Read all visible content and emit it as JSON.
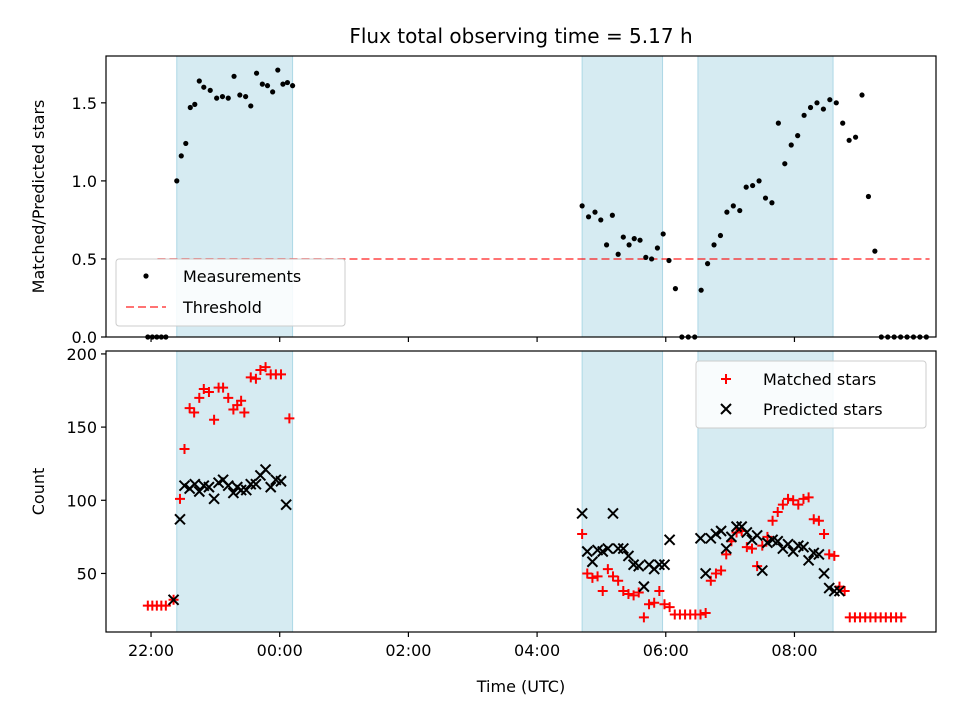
{
  "title": "Flux total observing time = 5.17 h",
  "colors": {
    "band": "#add8e6",
    "threshold": "#ff0000",
    "matched": "#ff0000",
    "predicted": "#000000",
    "measurement": "#000000"
  },
  "chart_data": [
    {
      "type": "scatter",
      "ylabel": "Matched/Predicted stars",
      "xlim": [
        -2.7,
        10.2
      ],
      "ylim": [
        0,
        1.8
      ],
      "yticks": [
        0.0,
        0.5,
        1.0,
        1.5
      ],
      "ytick_labels": [
        "0.0",
        "0.5",
        "1.0",
        "1.5"
      ],
      "grid": false,
      "legend_position": "lower-left",
      "shaded_intervals": [
        [
          -1.6,
          0.2
        ],
        [
          4.7,
          5.95
        ],
        [
          6.5,
          8.6
        ]
      ],
      "threshold": {
        "name": "Threshold",
        "value": 0.5,
        "x_range": [
          -1.9,
          10.1
        ]
      },
      "series": [
        {
          "name": "Measurements",
          "points": [
            [
              -2.05,
              0.0
            ],
            [
              -1.98,
              0.0
            ],
            [
              -1.91,
              0.0
            ],
            [
              -1.84,
              0.0
            ],
            [
              -1.77,
              0.0
            ],
            [
              -1.6,
              1.0
            ],
            [
              -1.53,
              1.16
            ],
            [
              -1.46,
              1.24
            ],
            [
              -1.39,
              1.47
            ],
            [
              -1.32,
              1.49
            ],
            [
              -1.25,
              1.64
            ],
            [
              -1.18,
              1.6
            ],
            [
              -1.08,
              1.58
            ],
            [
              -0.98,
              1.53
            ],
            [
              -0.89,
              1.54
            ],
            [
              -0.8,
              1.53
            ],
            [
              -0.71,
              1.67
            ],
            [
              -0.62,
              1.55
            ],
            [
              -0.53,
              1.54
            ],
            [
              -0.45,
              1.48
            ],
            [
              -0.36,
              1.69
            ],
            [
              -0.27,
              1.62
            ],
            [
              -0.19,
              1.61
            ],
            [
              -0.11,
              1.57
            ],
            [
              -0.03,
              1.71
            ],
            [
              0.05,
              1.62
            ],
            [
              0.12,
              1.63
            ],
            [
              0.2,
              1.61
            ],
            [
              4.7,
              0.84
            ],
            [
              4.8,
              0.77
            ],
            [
              4.9,
              0.8
            ],
            [
              4.99,
              0.75
            ],
            [
              5.08,
              0.59
            ],
            [
              5.17,
              0.78
            ],
            [
              5.26,
              0.53
            ],
            [
              5.34,
              0.64
            ],
            [
              5.43,
              0.59
            ],
            [
              5.51,
              0.63
            ],
            [
              5.6,
              0.62
            ],
            [
              5.69,
              0.51
            ],
            [
              5.78,
              0.5
            ],
            [
              5.87,
              0.57
            ],
            [
              5.96,
              0.66
            ],
            [
              6.05,
              0.49
            ],
            [
              6.15,
              0.31
            ],
            [
              6.25,
              0.0
            ],
            [
              6.35,
              0.0
            ],
            [
              6.45,
              0.0
            ],
            [
              6.55,
              0.3
            ],
            [
              6.65,
              0.47
            ],
            [
              6.75,
              0.59
            ],
            [
              6.85,
              0.65
            ],
            [
              6.95,
              0.8
            ],
            [
              7.05,
              0.84
            ],
            [
              7.15,
              0.81
            ],
            [
              7.25,
              0.96
            ],
            [
              7.35,
              0.97
            ],
            [
              7.45,
              1.0
            ],
            [
              7.55,
              0.89
            ],
            [
              7.65,
              0.86
            ],
            [
              7.75,
              1.37
            ],
            [
              7.85,
              1.11
            ],
            [
              7.95,
              1.23
            ],
            [
              8.05,
              1.29
            ],
            [
              8.15,
              1.42
            ],
            [
              8.25,
              1.47
            ],
            [
              8.35,
              1.5
            ],
            [
              8.45,
              1.46
            ],
            [
              8.55,
              1.52
            ],
            [
              8.65,
              1.5
            ],
            [
              8.75,
              1.37
            ],
            [
              8.85,
              1.26
            ],
            [
              8.95,
              1.28
            ],
            [
              9.05,
              1.55
            ],
            [
              9.15,
              0.9
            ],
            [
              9.25,
              0.55
            ],
            [
              9.35,
              0.0
            ],
            [
              9.45,
              0.0
            ],
            [
              9.55,
              0.0
            ],
            [
              9.65,
              0.0
            ],
            [
              9.75,
              0.0
            ],
            [
              9.85,
              0.0
            ],
            [
              9.95,
              0.0
            ],
            [
              10.05,
              0.0
            ]
          ]
        }
      ]
    },
    {
      "type": "scatter",
      "ylabel": "Count",
      "xlabel": "Time (UTC)",
      "xlim": [
        -2.7,
        10.2
      ],
      "ylim": [
        10,
        202
      ],
      "yticks": [
        50,
        100,
        150,
        200
      ],
      "ytick_labels": [
        "50",
        "100",
        "150",
        "200"
      ],
      "xticks": [
        -2,
        0,
        2,
        4,
        6,
        8
      ],
      "xtick_labels": [
        "22:00",
        "00:00",
        "02:00",
        "04:00",
        "06:00",
        "08:00"
      ],
      "grid": false,
      "legend_position": "upper-right",
      "shaded_intervals": [
        [
          -1.6,
          0.2
        ],
        [
          4.7,
          5.95
        ],
        [
          6.5,
          8.6
        ]
      ],
      "series": [
        {
          "name": "Matched stars",
          "marker": "plus",
          "points": [
            [
              -2.05,
              28
            ],
            [
              -1.98,
              28
            ],
            [
              -1.91,
              28
            ],
            [
              -1.84,
              28
            ],
            [
              -1.77,
              28
            ],
            [
              -1.65,
              32
            ],
            [
              -1.55,
              101
            ],
            [
              -1.48,
              135
            ],
            [
              -1.4,
              163
            ],
            [
              -1.33,
              160
            ],
            [
              -1.25,
              170
            ],
            [
              -1.18,
              176
            ],
            [
              -1.1,
              174
            ],
            [
              -1.02,
              155
            ],
            [
              -0.95,
              177
            ],
            [
              -0.88,
              177
            ],
            [
              -0.8,
              170
            ],
            [
              -0.72,
              162
            ],
            [
              -0.66,
              165
            ],
            [
              -0.6,
              168
            ],
            [
              -0.55,
              160
            ],
            [
              -0.45,
              184
            ],
            [
              -0.37,
              183
            ],
            [
              -0.3,
              189
            ],
            [
              -0.22,
              191
            ],
            [
              -0.14,
              186
            ],
            [
              -0.06,
              186
            ],
            [
              0.02,
              186
            ],
            [
              0.15,
              156
            ],
            [
              4.7,
              77
            ],
            [
              4.78,
              50
            ],
            [
              4.86,
              47
            ],
            [
              4.94,
              48
            ],
            [
              5.02,
              38
            ],
            [
              5.1,
              53
            ],
            [
              5.18,
              48
            ],
            [
              5.26,
              45
            ],
            [
              5.34,
              38
            ],
            [
              5.42,
              36
            ],
            [
              5.5,
              35
            ],
            [
              5.58,
              37
            ],
            [
              5.66,
              20
            ],
            [
              5.74,
              29
            ],
            [
              5.82,
              30
            ],
            [
              5.9,
              38
            ],
            [
              5.98,
              29
            ],
            [
              6.06,
              27
            ],
            [
              6.14,
              22
            ],
            [
              6.22,
              22
            ],
            [
              6.3,
              22
            ],
            [
              6.38,
              22
            ],
            [
              6.46,
              22
            ],
            [
              6.54,
              22
            ],
            [
              6.62,
              23
            ],
            [
              6.7,
              45
            ],
            [
              6.78,
              50
            ],
            [
              6.86,
              52
            ],
            [
              6.94,
              63
            ],
            [
              7.02,
              72
            ],
            [
              7.1,
              78
            ],
            [
              7.18,
              79
            ],
            [
              7.26,
              68
            ],
            [
              7.34,
              67
            ],
            [
              7.42,
              55
            ],
            [
              7.5,
              69
            ],
            [
              7.58,
              75
            ],
            [
              7.66,
              86
            ],
            [
              7.74,
              92
            ],
            [
              7.82,
              97
            ],
            [
              7.9,
              101
            ],
            [
              7.98,
              100
            ],
            [
              8.06,
              97
            ],
            [
              8.14,
              101
            ],
            [
              8.22,
              102
            ],
            [
              8.3,
              87
            ],
            [
              8.38,
              86
            ],
            [
              8.46,
              77
            ],
            [
              8.54,
              63
            ],
            [
              8.62,
              62
            ],
            [
              8.7,
              41
            ],
            [
              8.78,
              38
            ],
            [
              8.86,
              20
            ],
            [
              8.94,
              20
            ],
            [
              9.02,
              20
            ],
            [
              9.1,
              20
            ],
            [
              9.18,
              20
            ],
            [
              9.26,
              20
            ],
            [
              9.34,
              20
            ],
            [
              9.42,
              20
            ],
            [
              9.5,
              20
            ],
            [
              9.58,
              20
            ],
            [
              9.66,
              20
            ]
          ]
        },
        {
          "name": "Predicted stars",
          "marker": "x",
          "points": [
            [
              -1.65,
              32
            ],
            [
              -1.55,
              87
            ],
            [
              -1.48,
              110
            ],
            [
              -1.4,
              108
            ],
            [
              -1.32,
              111
            ],
            [
              -1.25,
              106
            ],
            [
              -1.18,
              110
            ],
            [
              -1.1,
              109
            ],
            [
              -1.02,
              101
            ],
            [
              -0.95,
              112
            ],
            [
              -0.88,
              114
            ],
            [
              -0.8,
              110
            ],
            [
              -0.72,
              105
            ],
            [
              -0.66,
              109
            ],
            [
              -0.6,
              107
            ],
            [
              -0.52,
              107
            ],
            [
              -0.45,
              111
            ],
            [
              -0.37,
              111
            ],
            [
              -0.3,
              117
            ],
            [
              -0.22,
              121
            ],
            [
              -0.14,
              109
            ],
            [
              -0.06,
              114
            ],
            [
              0.02,
              113
            ],
            [
              0.1,
              97
            ],
            [
              4.7,
              91
            ],
            [
              4.78,
              65
            ],
            [
              4.86,
              58
            ],
            [
              4.94,
              66
            ],
            [
              5.02,
              65
            ],
            [
              5.1,
              67
            ],
            [
              5.18,
              91
            ],
            [
              5.26,
              67
            ],
            [
              5.34,
              67
            ],
            [
              5.42,
              62
            ],
            [
              5.5,
              56
            ],
            [
              5.58,
              55
            ],
            [
              5.66,
              41
            ],
            [
              5.74,
              56
            ],
            [
              5.82,
              53
            ],
            [
              5.9,
              56
            ],
            [
              5.98,
              56
            ],
            [
              6.06,
              73
            ],
            [
              6.54,
              74
            ],
            [
              6.62,
              50
            ],
            [
              6.7,
              74
            ],
            [
              6.78,
              77
            ],
            [
              6.86,
              79
            ],
            [
              6.94,
              67
            ],
            [
              7.02,
              75
            ],
            [
              7.1,
              82
            ],
            [
              7.18,
              82
            ],
            [
              7.26,
              78
            ],
            [
              7.34,
              73
            ],
            [
              7.42,
              76
            ],
            [
              7.5,
              52
            ],
            [
              7.58,
              71
            ],
            [
              7.66,
              73
            ],
            [
              7.74,
              72
            ],
            [
              7.82,
              67
            ],
            [
              7.9,
              70
            ],
            [
              7.98,
              65
            ],
            [
              8.06,
              69
            ],
            [
              8.14,
              68
            ],
            [
              8.22,
              59
            ],
            [
              8.3,
              64
            ],
            [
              8.38,
              63
            ],
            [
              8.46,
              50
            ],
            [
              8.54,
              40
            ],
            [
              8.62,
              38
            ],
            [
              8.7,
              38
            ]
          ]
        }
      ]
    }
  ]
}
